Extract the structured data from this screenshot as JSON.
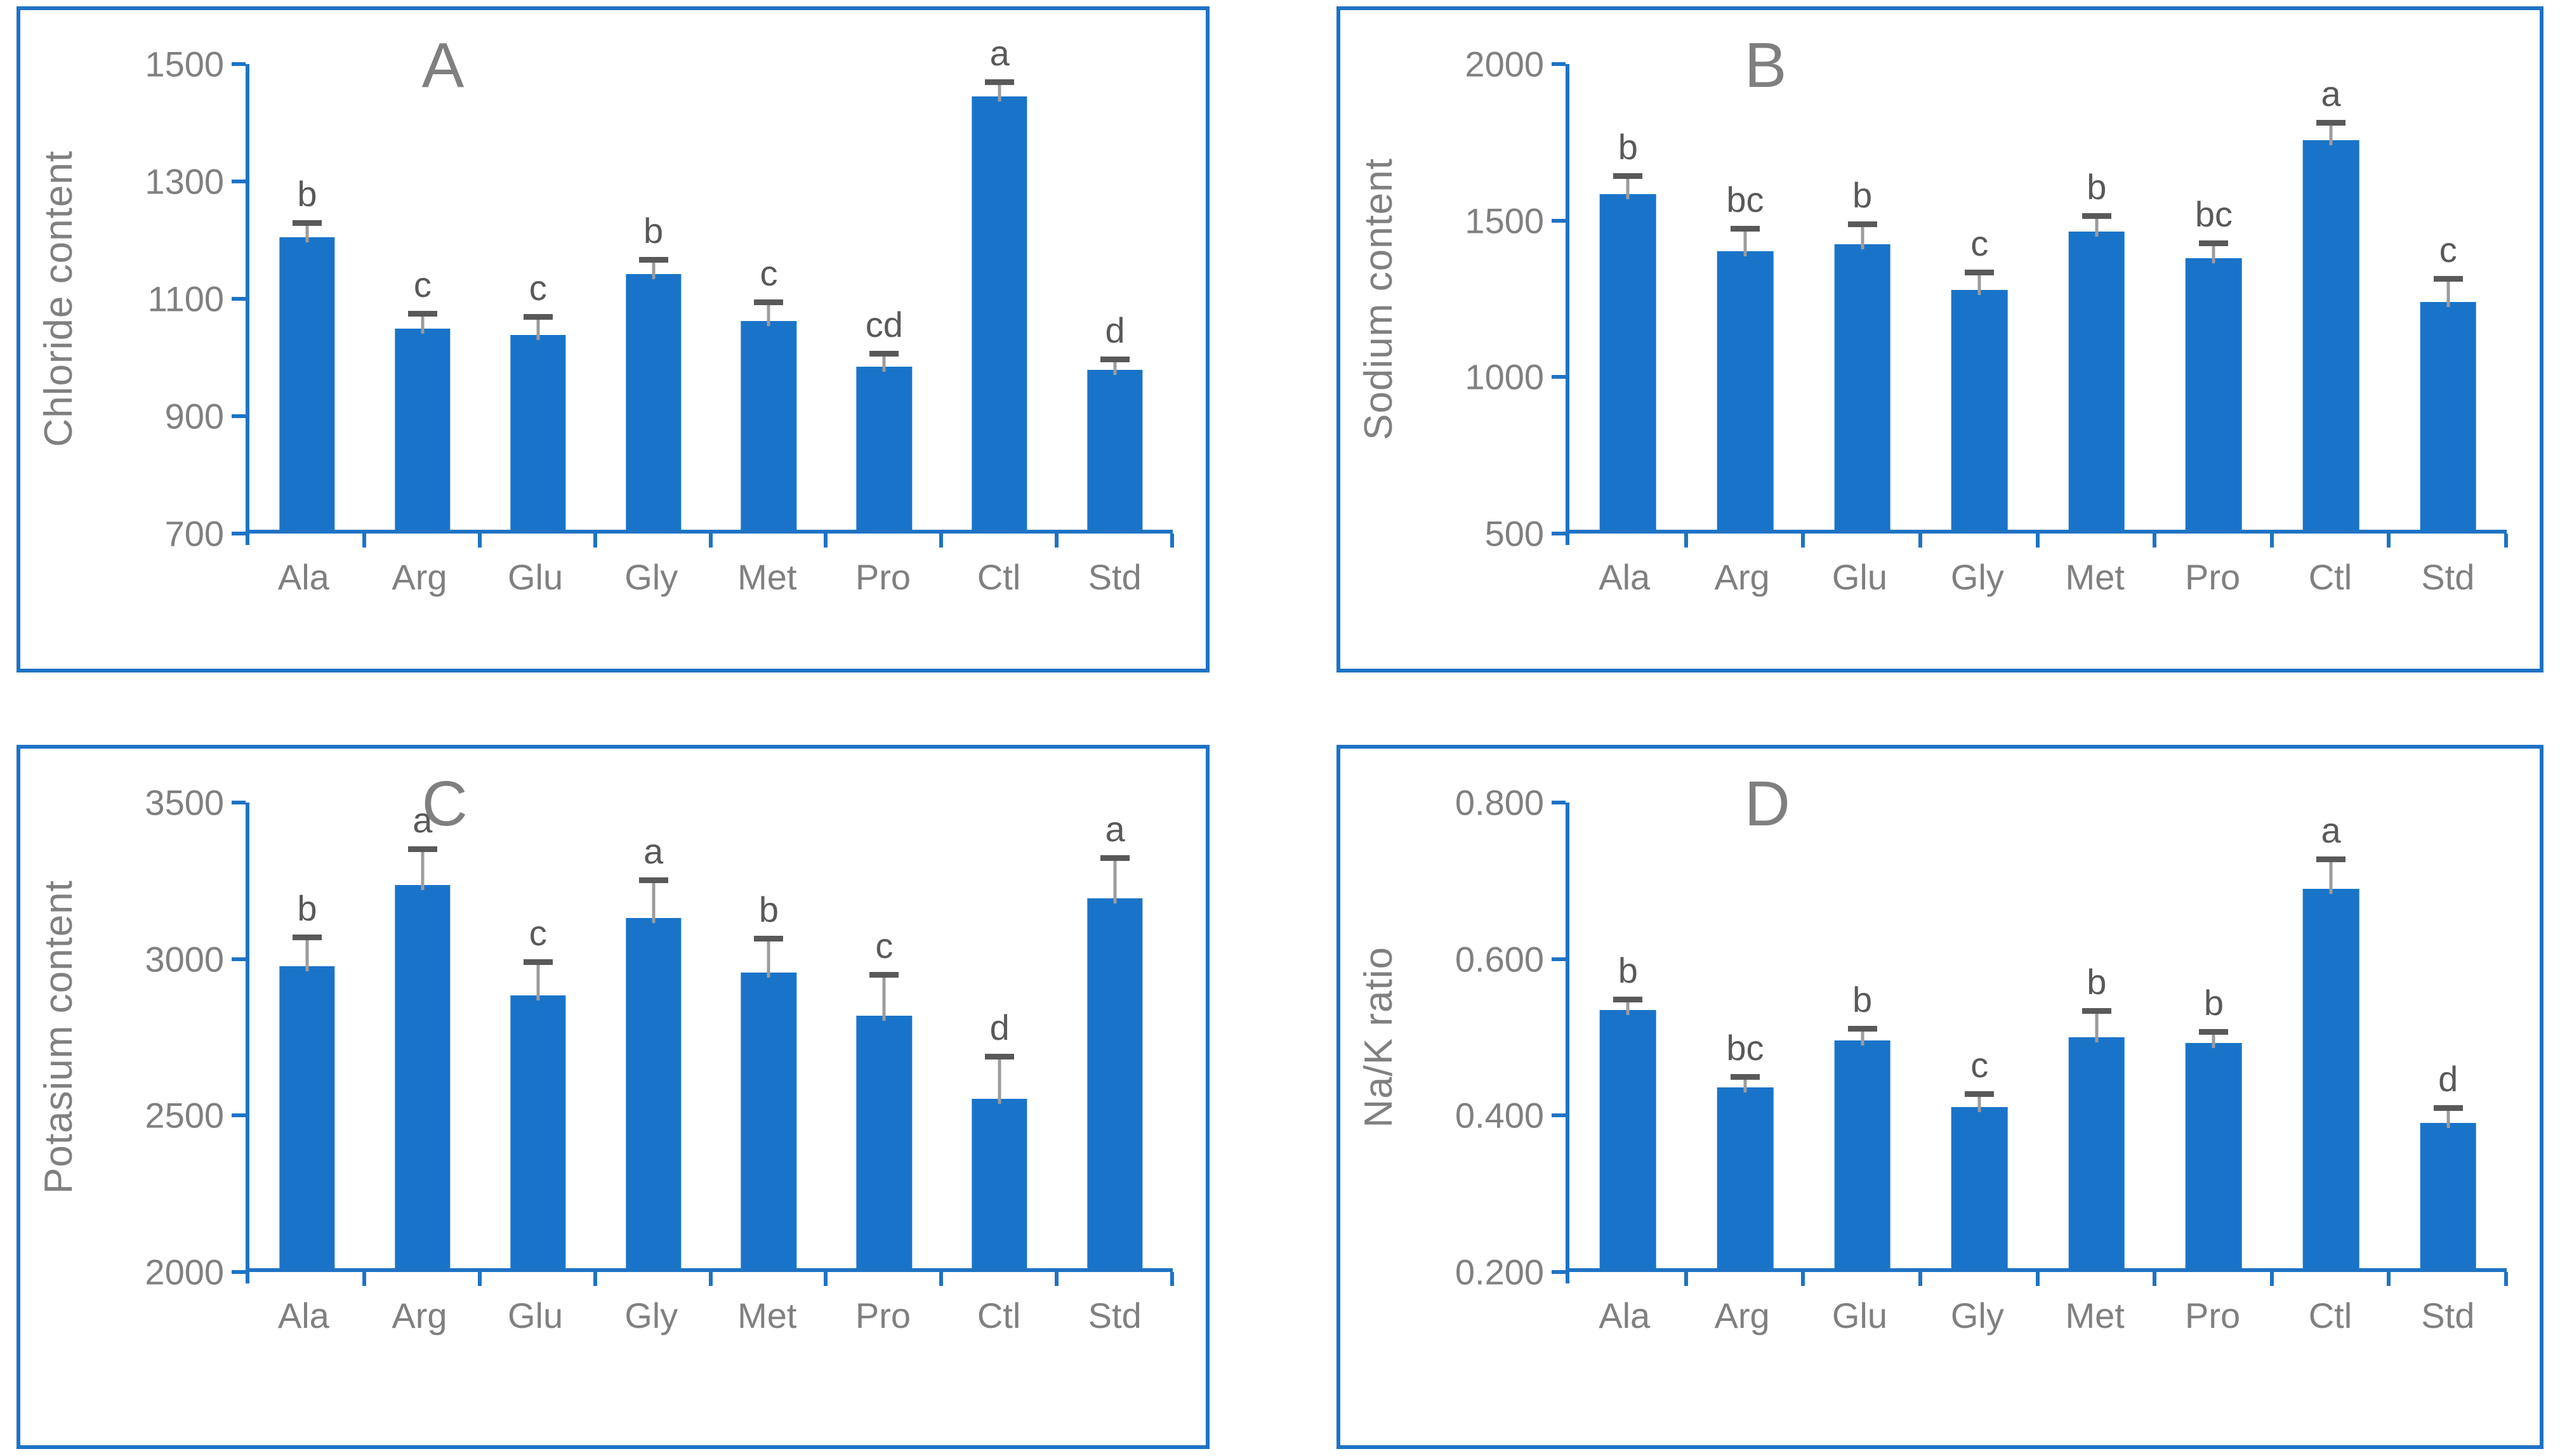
{
  "figure": {
    "layout": "2x2 grid of bar charts",
    "background": "#ffffff"
  },
  "colors": {
    "bar_fill": "#1974C9",
    "axis_blue": "#1E73C5",
    "panel_border": "#1E73C5",
    "tick_text": "#808080",
    "axis_title_text": "#808080",
    "panel_letter_text": "#7F7F7F",
    "sig_letter_text": "#595959",
    "error_cap": "#595959",
    "error_stem": "#9C9C9C"
  },
  "chart_data": [
    {
      "type": "bar",
      "panel_label": "A",
      "ylabel": "Chloride content",
      "xlabel": "",
      "ylim": [
        700,
        1500
      ],
      "yticks": [
        "1500",
        "1300",
        "1100",
        "900",
        "700"
      ],
      "ytick_values": [
        1500,
        1300,
        1100,
        900,
        700
      ],
      "categories": [
        "Ala",
        "Arg",
        "Glu",
        "Gly",
        "Met",
        "Pro",
        "Ctl",
        "Std"
      ],
      "values": [
        1198,
        1043,
        1032,
        1136,
        1056,
        978,
        1438,
        972
      ],
      "errors_upper": [
        24,
        25,
        30,
        24,
        31,
        22,
        24,
        18
      ],
      "sig_letters": [
        "b",
        "c",
        "c",
        "b",
        "c",
        "cd",
        "a",
        "d"
      ],
      "grid": false,
      "legend": null
    },
    {
      "type": "bar",
      "panel_label": "B",
      "ylabel": "Sodium content",
      "xlabel": "",
      "ylim": [
        500,
        2000
      ],
      "yticks": [
        "2000",
        "1500",
        "1000",
        "500"
      ],
      "ytick_values": [
        2000,
        1500,
        1000,
        500
      ],
      "categories": [
        "Ala",
        "Arg",
        "Glu",
        "Gly",
        "Met",
        "Pro",
        "Ctl",
        "Std"
      ],
      "values": [
        1572,
        1390,
        1412,
        1266,
        1452,
        1368,
        1745,
        1228
      ],
      "errors_upper": [
        58,
        70,
        64,
        55,
        49,
        47,
        55,
        73
      ],
      "sig_letters": [
        "b",
        "bc",
        "b",
        "c",
        "b",
        "bc",
        "a",
        "c"
      ],
      "grid": false,
      "legend": null
    },
    {
      "type": "bar",
      "panel_label": "C",
      "ylabel": "Potasium content",
      "xlabel": "",
      "ylim": [
        2000,
        3500
      ],
      "yticks": [
        "3500",
        "3000",
        "2500",
        "2000"
      ],
      "ytick_values": [
        3500,
        3000,
        2500,
        2000
      ],
      "categories": [
        "Ala",
        "Arg",
        "Glu",
        "Gly",
        "Met",
        "Pro",
        "Ctl",
        "Std"
      ],
      "values": [
        2965,
        3225,
        2872,
        3118,
        2944,
        2806,
        2542,
        3182
      ],
      "errors_upper": [
        92,
        112,
        106,
        120,
        108,
        131,
        133,
        128
      ],
      "sig_letters": [
        "b",
        "a",
        "c",
        "a",
        "b",
        "c",
        "d",
        "a"
      ],
      "grid": false,
      "legend": null
    },
    {
      "type": "bar",
      "panel_label": "D",
      "ylabel": "Na/K ratio",
      "xlabel": "",
      "ylim": [
        0.2,
        0.8
      ],
      "yticks": [
        "0.800",
        "0.600",
        "0.400",
        "0.200"
      ],
      "ytick_values": [
        0.8,
        0.6,
        0.4,
        0.2
      ],
      "categories": [
        "Ala",
        "Arg",
        "Glu",
        "Gly",
        "Met",
        "Pro",
        "Ctl",
        "Std"
      ],
      "values": [
        0.53,
        0.431,
        0.491,
        0.406,
        0.495,
        0.488,
        0.685,
        0.386
      ],
      "errors_upper": [
        0.013,
        0.013,
        0.015,
        0.016,
        0.033,
        0.014,
        0.037,
        0.018
      ],
      "sig_letters": [
        "b",
        "bc",
        "b",
        "c",
        "b",
        "b",
        "a",
        "d"
      ],
      "grid": false,
      "legend": null
    }
  ]
}
